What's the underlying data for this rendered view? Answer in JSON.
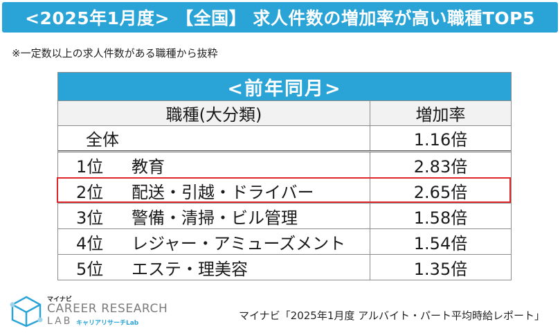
{
  "header": {
    "title": "<2025年1月度> 【全国】 求人件数の増加率が高い職種TOP5",
    "bg_color": "#2aa4d6"
  },
  "note": "※一定数以上の求人件数がある職種から抜粋",
  "table": {
    "period_label": "<前年同月>",
    "columns": [
      "職種(大分類)",
      "増加率"
    ],
    "total": {
      "name": "全体",
      "rate": "1.16倍"
    },
    "rows": [
      {
        "rank": "1位",
        "name": "教育",
        "rate": "2.83倍"
      },
      {
        "rank": "2位",
        "name": "配送・引越・ドライバー",
        "rate": "2.65倍",
        "highlighted": true
      },
      {
        "rank": "3位",
        "name": "警備・清掃・ビル管理",
        "rate": "1.58倍"
      },
      {
        "rank": "4位",
        "name": "レジャー・アミューズメント",
        "rate": "1.54倍"
      },
      {
        "rank": "5位",
        "name": "エステ・理美容",
        "rate": "1.35倍"
      }
    ],
    "highlight_color": "#e0262b"
  },
  "logo": {
    "small": "マイナビ",
    "main": "CAREER RESEARCH",
    "lab": "LAB",
    "sub": "キャリアリサーチLab",
    "icon": "cube-logo-icon"
  },
  "source": "マイナビ「2025年1月度 アルバイト・パート平均時給レポート」"
}
